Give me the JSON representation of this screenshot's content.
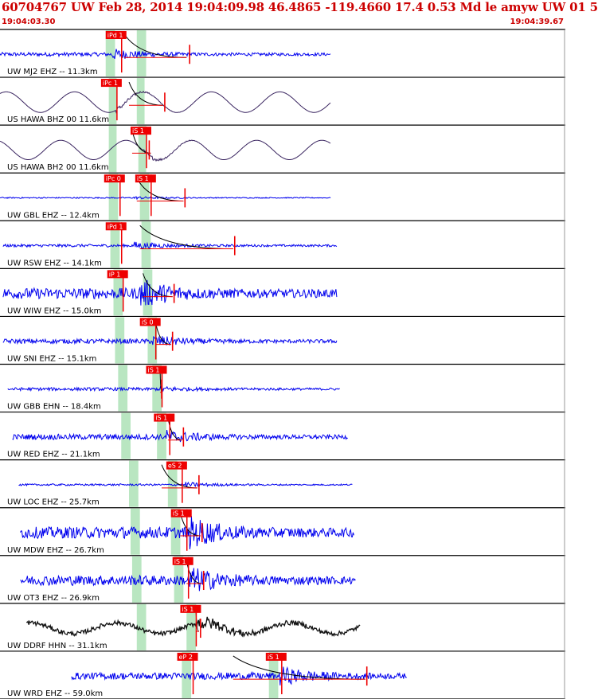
{
  "chart_data": {
    "type": "line",
    "title": "60704767 UW Feb 28, 2014 19:04:09.98   46.4865 -119.4660 17.4 0.53 Md le amyw UW 01   5",
    "time_start": "19:04:03.30",
    "time_end": "19:04:39.67",
    "xlim_seconds": [
      0,
      36.37
    ],
    "colors": {
      "picks": "#ee0000",
      "coda": "#000000",
      "window": "#b9e6c1",
      "frame": "#000000"
    },
    "traces": [
      {
        "label": "UW MJ2 EHZ -- 11.3km",
        "color": "#0000ee",
        "kind": "short",
        "data_start": 0.0,
        "data_end": 21.3,
        "amp": 0.25,
        "burst": 1.0,
        "period": 0.15,
        "event": 7.2,
        "picks": [
          {
            "text": "iPd 1",
            "t": 6.8
          }
        ],
        "pick_mark": 12.2,
        "window": [
          6.8,
          7.4
        ],
        "window2": [
          8.8,
          9.4
        ],
        "coda": [
          8.0,
          12.0
        ]
      },
      {
        "label": "US HAWA BHZ 00 11.6km",
        "color": "#3a2560",
        "kind": "long",
        "data_start": 0.0,
        "data_end": 21.3,
        "amp": 0.85,
        "burst": 0.5,
        "period": 4.4,
        "event": 7.4,
        "picks": [
          {
            "text": "iPc 1",
            "t": 6.5
          }
        ],
        "pick_mark": 10.6,
        "window": [
          7.0,
          7.5
        ],
        "window2": [
          8.8,
          9.3
        ],
        "coda": [
          8.3,
          10.5
        ]
      },
      {
        "label": "US HAWA BH2 00 11.6km",
        "color": "#3a2560",
        "kind": "long",
        "data_start": 0.0,
        "data_end": 21.3,
        "amp": 0.8,
        "burst": 0.6,
        "period": 4.2,
        "event": 9.2,
        "picks": [
          {
            "text": "iS 1",
            "t": 8.4
          }
        ],
        "pick_mark": 9.6,
        "window": [
          7.0,
          7.5
        ],
        "window2": [
          8.9,
          9.4
        ],
        "coda": [
          8.5,
          9.7
        ]
      },
      {
        "label": "UW GBL EHZ -- 12.4km",
        "color": "#0000ee",
        "kind": "short",
        "data_start": 0.0,
        "data_end": 21.3,
        "amp": 0.08,
        "burst": 0.7,
        "period": 0.15,
        "event": 8.6,
        "picks": [
          {
            "text": "iPc 0",
            "t": 6.7
          },
          {
            "text": "iS 1",
            "t": 8.7
          }
        ],
        "pick_mark": 11.9,
        "window": [
          7.0,
          7.6
        ],
        "window2": [
          9.0,
          9.6
        ],
        "coda": [
          8.8,
          11.8
        ]
      },
      {
        "label": "UW RSW EHZ -- 14.1km",
        "color": "#0000ee",
        "kind": "short",
        "data_start": 0.2,
        "data_end": 21.7,
        "amp": 0.18,
        "burst": 0.9,
        "period": 0.15,
        "event": 8.6,
        "picks": [
          {
            "text": "iPd 1",
            "t": 6.8
          }
        ],
        "pick_mark": 15.1,
        "window": [
          7.1,
          7.7
        ],
        "window2": [
          9.1,
          9.7
        ],
        "coda": [
          9.0,
          15.0
        ]
      },
      {
        "label": "UW WIW EHZ -- 15.0km",
        "color": "#0000ee",
        "kind": "short",
        "data_start": 0.2,
        "data_end": 21.7,
        "amp": 0.7,
        "burst": 0.9,
        "period": 0.15,
        "event": 9.0,
        "picks": [
          {
            "text": "iP 1",
            "t": 6.9
          }
        ],
        "pick_mark": 11.2,
        "window": [
          7.3,
          7.9
        ],
        "window2": [
          9.2,
          9.8
        ],
        "coda": [
          9.2,
          11.1
        ]
      },
      {
        "label": "UW SNI EHZ -- 15.1km",
        "color": "#0000ee",
        "kind": "short",
        "data_start": 0.2,
        "data_end": 21.7,
        "amp": 0.3,
        "burst": 0.9,
        "period": 0.15,
        "event": 9.8,
        "picks": [
          {
            "text": "iS 0",
            "t": 9.0
          }
        ],
        "pick_mark": 11.1,
        "window": [
          7.4,
          8.0
        ],
        "window2": [
          9.5,
          10.1
        ],
        "coda": [
          10.0,
          11.0
        ]
      },
      {
        "label": "UW GBB EHN -- 18.4km",
        "color": "#0000ee",
        "kind": "short",
        "data_start": 0.5,
        "data_end": 21.9,
        "amp": 0.2,
        "burst": 0.5,
        "period": 0.15,
        "event": 10.3,
        "picks": [
          {
            "text": "iS 1",
            "t": 9.4
          }
        ],
        "pick_mark": 10.4,
        "window": [
          7.6,
          8.2
        ],
        "window2": [
          9.8,
          10.4
        ],
        "coda": [
          10.3,
          10.4
        ]
      },
      {
        "label": "UW RED EHZ -- 21.1km",
        "color": "#0000ee",
        "kind": "short",
        "data_start": 0.8,
        "data_end": 22.4,
        "amp": 0.35,
        "burst": 0.8,
        "period": 0.15,
        "event": 10.7,
        "picks": [
          {
            "text": "iS 1",
            "t": 9.9
          }
        ],
        "pick_mark": 11.8,
        "window": [
          7.8,
          8.4
        ],
        "window2": [
          10.1,
          10.7
        ],
        "coda": [
          10.8,
          11.7
        ]
      },
      {
        "label": "UW LOC EHZ -- 25.7km",
        "color": "#0000ee",
        "kind": "short",
        "data_start": 1.2,
        "data_end": 22.7,
        "amp": 0.12,
        "burst": 0.9,
        "period": 0.15,
        "event": 11.9,
        "picks": [
          {
            "text": "eS 2",
            "t": 10.7
          }
        ],
        "pick_mark": 12.8,
        "window": [
          8.3,
          8.9
        ],
        "window2": [
          10.8,
          11.4
        ],
        "coda": [
          10.4,
          12.7
        ]
      },
      {
        "label": "UW MDW EHZ -- 26.7km",
        "color": "#0000ee",
        "kind": "short",
        "data_start": 1.3,
        "data_end": 22.8,
        "amp": 0.75,
        "burst": 0.9,
        "period": 0.15,
        "event": 12.2,
        "picks": [
          {
            "text": "iS 1",
            "t": 11.0
          }
        ],
        "pick_mark": 13.0,
        "window": [
          8.4,
          9.0
        ],
        "window2": [
          11.0,
          11.6
        ],
        "coda": [
          11.6,
          12.9
        ]
      },
      {
        "label": "UW OT3 EHZ -- 26.9km",
        "color": "#0000ee",
        "kind": "short",
        "data_start": 1.3,
        "data_end": 22.9,
        "amp": 0.65,
        "burst": 0.9,
        "period": 0.15,
        "event": 12.2,
        "picks": [
          {
            "text": "iS 1",
            "t": 11.1
          }
        ],
        "pick_mark": 13.1,
        "window": [
          8.5,
          9.1
        ],
        "window2": [
          11.2,
          11.8
        ],
        "coda": [
          12.0,
          13.0
        ]
      },
      {
        "label": "UW DDRF HHN -- 31.1km",
        "color": "#111111",
        "kind": "mixed",
        "data_start": 1.7,
        "data_end": 23.2,
        "amp": 0.45,
        "burst": 0.9,
        "period": 5.6,
        "event": 12.7,
        "picks": [
          {
            "text": "iS 1",
            "t": 11.6
          }
        ],
        "pick_mark": 12.9,
        "window": [
          8.8,
          9.4
        ],
        "window2": [
          12.0,
          12.6
        ],
        "coda": [
          12.6,
          12.8
        ]
      },
      {
        "label": "UW WRD EHZ -- 59.0km",
        "color": "#0000ee",
        "kind": "short",
        "data_start": 4.6,
        "data_end": 26.2,
        "amp": 0.45,
        "burst": 0.9,
        "period": 0.15,
        "event": 18.0,
        "picks": [
          {
            "text": "eP 2",
            "t": 11.4
          },
          {
            "text": "iS 1",
            "t": 17.1
          }
        ],
        "pick_mark": 23.6,
        "window": [
          11.7,
          12.3
        ],
        "window2": [
          17.3,
          17.9
        ],
        "coda": [
          15.0,
          23.5
        ]
      }
    ]
  }
}
